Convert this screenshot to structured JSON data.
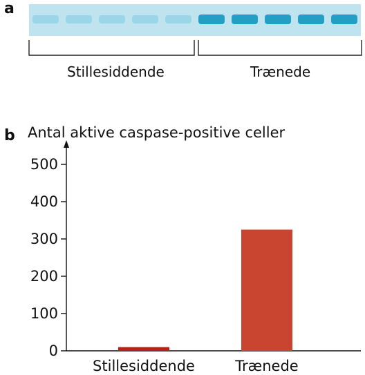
{
  "panel_a": {
    "letter": "a",
    "groups": [
      "Stillesiddende",
      "Trænede"
    ],
    "band_color_weak": "#8fd0e6",
    "band_color_strong": "#1a9ac2",
    "strip_color": "#bfe3ef"
  },
  "panel_b": {
    "letter": "b"
  },
  "chart_data": {
    "type": "bar",
    "title": "Antal aktive caspase-positive celler",
    "categories": [
      "Stillesiddende",
      "Trænede"
    ],
    "values": [
      10,
      325
    ],
    "ylim": [
      0,
      500
    ],
    "yticks": [
      0,
      100,
      200,
      300,
      400,
      500
    ],
    "xlabel": "",
    "ylabel": "",
    "grid": false,
    "colors": [
      "#b82216",
      "#c9452f"
    ]
  }
}
